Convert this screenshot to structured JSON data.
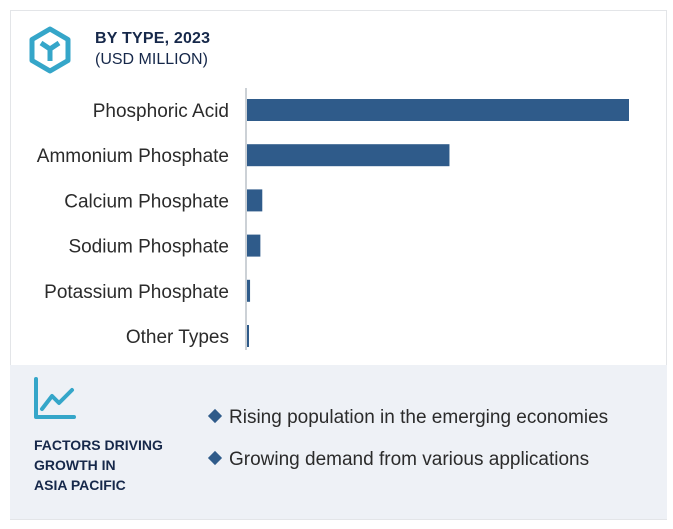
{
  "header": {
    "title": "BY TYPE, 2023",
    "subtitle": "(USD MILLION)",
    "icon": "hexagon-y-icon"
  },
  "colors": {
    "bar": "#2f5b8a",
    "title": "#16284a",
    "icon": "#35a6c9",
    "panel": "#eef1f6"
  },
  "chart_data": {
    "type": "bar",
    "orientation": "horizontal",
    "categories": [
      "Phosphoric Acid",
      "Ammonium Phosphate",
      "Calcium Phosphate",
      "Sodium Phosphate",
      "Potassium Phosphate",
      "Other Types"
    ],
    "values": [
      100,
      53,
      4,
      3.5,
      0.8,
      0.5
    ],
    "xlim": [
      0,
      100
    ],
    "grid": false,
    "legend": "none"
  },
  "factors": {
    "icon": "trend-line-icon",
    "title_lines": [
      "FACTORS DRIVING",
      "GROWTH IN",
      "ASIA PACIFIC"
    ],
    "items": [
      "Rising population in the emerging economies",
      "Growing demand from various applications"
    ]
  }
}
